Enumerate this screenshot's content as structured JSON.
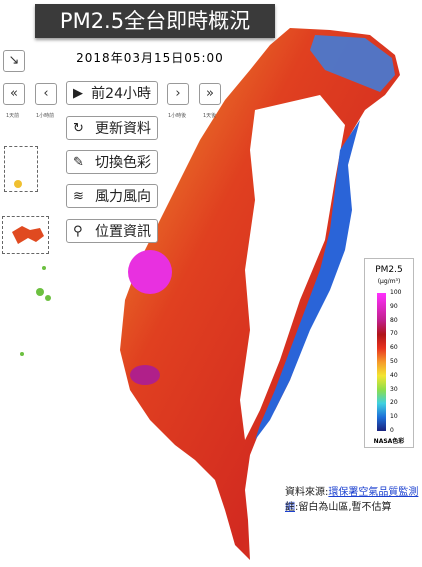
{
  "header": {
    "title": "PM2.5全台即時概況",
    "datetime": "2018年03月15日05:00"
  },
  "controls": {
    "buttons": [
      "前24小時",
      "更新資料",
      "切換色彩",
      "風力風向",
      "位置資訊"
    ],
    "nav_labels": [
      "1天前",
      "1小時前",
      "1小時後",
      "1天後"
    ]
  },
  "legend": {
    "title": "PM2.5",
    "unit": "(μg/m³)",
    "ticks": [
      100,
      90,
      80,
      70,
      60,
      50,
      40,
      30,
      20,
      10,
      0
    ],
    "credit": "NASA色彩"
  },
  "footer": {
    "source_label": "資料來源:",
    "source_link": "環保署空氣品質監測網",
    "note": "註:留白為山區,暫不估算"
  }
}
